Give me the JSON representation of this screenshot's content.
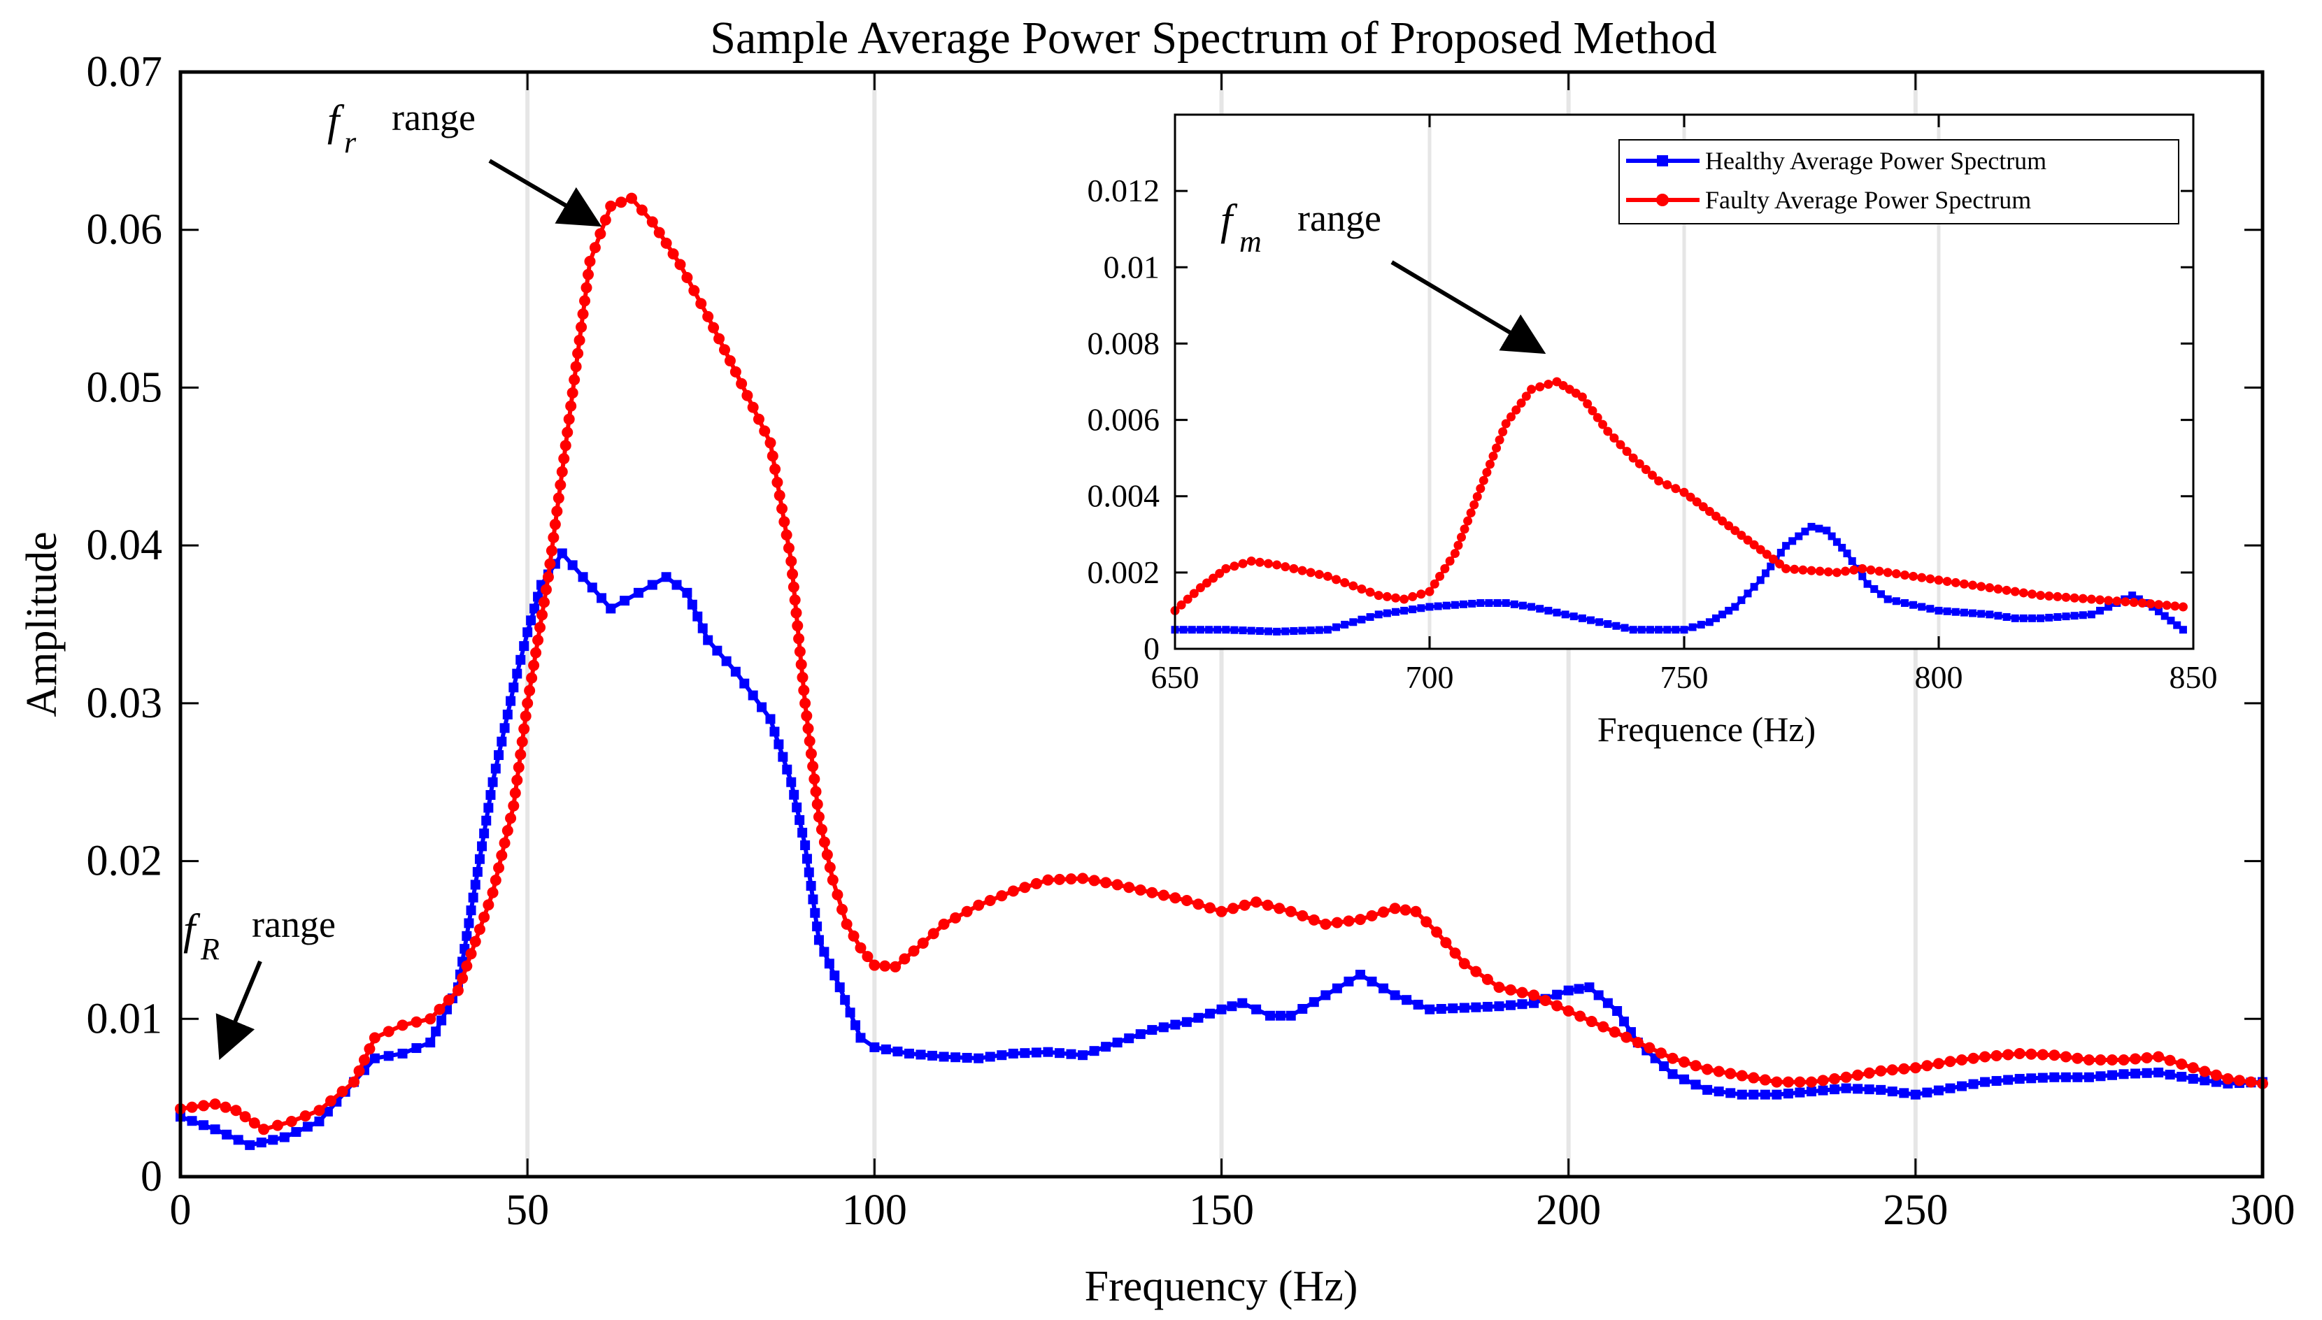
{
  "chart_data": [
    {
      "id": "main",
      "type": "line",
      "title": "Sample Average Power Spectrum of Proposed Method",
      "xlabel": "Frequency (Hz)",
      "ylabel": "Amplitude",
      "xlim": [
        0,
        300
      ],
      "ylim": [
        0,
        0.07
      ],
      "xticks": [
        0,
        50,
        100,
        150,
        200,
        250,
        300
      ],
      "xtick_labels": [
        "0",
        "50",
        "100",
        "150",
        "200",
        "250",
        "300"
      ],
      "yticks": [
        0,
        0.01,
        0.02,
        0.03,
        0.04,
        0.05,
        0.06,
        0.07
      ],
      "ytick_labels": [
        "0",
        "0.01",
        "0.02",
        "0.03",
        "0.04",
        "0.05",
        "0.06",
        "0.07"
      ],
      "grid": "vertical",
      "series": [
        {
          "name": "Healthy Average Power Spectrum",
          "color": "#0000ff",
          "marker": "square",
          "x": [
            0,
            5,
            10,
            15,
            20,
            25,
            28,
            32,
            36,
            40,
            45,
            48,
            50,
            52,
            55,
            58,
            62,
            66,
            70,
            73,
            76,
            80,
            85,
            88,
            90,
            92,
            95,
            98,
            100,
            105,
            110,
            115,
            120,
            125,
            130,
            135,
            140,
            145,
            150,
            153,
            157,
            160,
            165,
            170,
            175,
            180,
            185,
            190,
            195,
            200,
            203,
            207,
            210,
            215,
            220,
            225,
            230,
            235,
            240,
            245,
            250,
            255,
            260,
            265,
            270,
            275,
            280,
            285,
            290,
            295,
            300
          ],
          "y": [
            0.0038,
            0.003,
            0.002,
            0.0025,
            0.0035,
            0.006,
            0.0075,
            0.0078,
            0.0085,
            0.012,
            0.025,
            0.031,
            0.0345,
            0.0375,
            0.0395,
            0.038,
            0.036,
            0.037,
            0.038,
            0.037,
            0.034,
            0.032,
            0.029,
            0.025,
            0.021,
            0.015,
            0.012,
            0.0088,
            0.0082,
            0.0078,
            0.0076,
            0.0075,
            0.0078,
            0.0079,
            0.0077,
            0.0085,
            0.0093,
            0.0098,
            0.0106,
            0.011,
            0.0102,
            0.0102,
            0.0115,
            0.0128,
            0.0115,
            0.0106,
            0.0107,
            0.0108,
            0.011,
            0.0118,
            0.012,
            0.0105,
            0.0085,
            0.0065,
            0.0055,
            0.0052,
            0.0052,
            0.0054,
            0.0056,
            0.0055,
            0.0052,
            0.0056,
            0.006,
            0.0062,
            0.0063,
            0.0063,
            0.0065,
            0.0066,
            0.0062,
            0.0059,
            0.006
          ]
        },
        {
          "name": "Faulty Average Power Spectrum",
          "color": "#ff0000",
          "marker": "circle",
          "x": [
            0,
            5,
            8,
            12,
            16,
            20,
            25,
            28,
            32,
            36,
            40,
            45,
            48,
            50,
            53,
            56,
            59,
            62,
            65,
            68,
            72,
            76,
            80,
            85,
            88,
            90,
            92,
            94,
            96,
            98,
            100,
            103,
            107,
            110,
            115,
            120,
            125,
            130,
            135,
            140,
            145,
            150,
            155,
            160,
            165,
            170,
            175,
            178,
            181,
            185,
            190,
            195,
            200,
            205,
            210,
            215,
            220,
            225,
            230,
            235,
            240,
            245,
            250,
            255,
            260,
            265,
            270,
            275,
            280,
            285,
            290,
            295,
            300
          ],
          "y": [
            0.0043,
            0.0046,
            0.0042,
            0.003,
            0.0035,
            0.0042,
            0.006,
            0.0088,
            0.0096,
            0.01,
            0.0118,
            0.018,
            0.0235,
            0.03,
            0.038,
            0.048,
            0.058,
            0.0615,
            0.062,
            0.0605,
            0.0578,
            0.0545,
            0.051,
            0.0465,
            0.039,
            0.03,
            0.0228,
            0.0188,
            0.016,
            0.0145,
            0.0134,
            0.0133,
            0.0148,
            0.016,
            0.0172,
            0.0181,
            0.0188,
            0.0189,
            0.0185,
            0.018,
            0.0175,
            0.0168,
            0.0174,
            0.0168,
            0.016,
            0.0163,
            0.017,
            0.0168,
            0.0155,
            0.0135,
            0.012,
            0.0115,
            0.0105,
            0.0095,
            0.0085,
            0.0075,
            0.0068,
            0.0064,
            0.006,
            0.006,
            0.0063,
            0.0067,
            0.0069,
            0.0073,
            0.0076,
            0.0078,
            0.0077,
            0.0074,
            0.0074,
            0.0076,
            0.0069,
            0.0062,
            0.0059
          ]
        }
      ],
      "annotations": [
        {
          "symbol": "f",
          "subscript": "r",
          "text": "range"
        },
        {
          "symbol": "f",
          "subscript": "R",
          "text": "range"
        }
      ]
    },
    {
      "id": "inset",
      "type": "line",
      "title": "",
      "xlabel": "Frequence (Hz)",
      "ylabel": "",
      "xlim": [
        650,
        850
      ],
      "ylim": [
        0,
        0.014
      ],
      "xticks": [
        650,
        700,
        750,
        800,
        850
      ],
      "xtick_labels": [
        "650",
        "700",
        "750",
        "800",
        "850"
      ],
      "yticks": [
        0,
        0.002,
        0.004,
        0.006,
        0.008,
        0.01,
        0.012
      ],
      "ytick_labels": [
        "0",
        "0.002",
        "0.004",
        "0.006",
        "0.008",
        "0.01",
        "0.012"
      ],
      "grid": "vertical",
      "legend": {
        "position": "top-right",
        "entries": [
          "Healthy Average Power Spectrum",
          "Faulty Average Power Spectrum"
        ]
      },
      "series": [
        {
          "name": "Healthy Average Power Spectrum",
          "color": "#0000ff",
          "marker": "square",
          "x": [
            650,
            660,
            670,
            680,
            690,
            700,
            710,
            715,
            720,
            730,
            740,
            750,
            755,
            760,
            765,
            770,
            775,
            778,
            782,
            786,
            790,
            800,
            810,
            815,
            820,
            830,
            835,
            838,
            842,
            848
          ],
          "y": [
            0.0005,
            0.0005,
            0.00045,
            0.0005,
            0.0009,
            0.0011,
            0.0012,
            0.0012,
            0.0011,
            0.0008,
            0.0005,
            0.0005,
            0.0007,
            0.0011,
            0.0018,
            0.0027,
            0.0032,
            0.0031,
            0.0025,
            0.0017,
            0.0013,
            0.001,
            0.0009,
            0.0008,
            0.0008,
            0.0009,
            0.0012,
            0.0014,
            0.0011,
            0.0005
          ]
        },
        {
          "name": "Faulty Average Power Spectrum",
          "color": "#ff0000",
          "marker": "circle",
          "x": [
            650,
            655,
            660,
            665,
            670,
            680,
            690,
            695,
            700,
            705,
            710,
            715,
            720,
            725,
            730,
            735,
            740,
            745,
            750,
            755,
            760,
            765,
            770,
            780,
            785,
            790,
            800,
            810,
            820,
            830,
            840,
            848
          ],
          "y": [
            0.001,
            0.0016,
            0.0021,
            0.0023,
            0.0022,
            0.0019,
            0.0014,
            0.0013,
            0.0015,
            0.0025,
            0.0042,
            0.0059,
            0.0068,
            0.007,
            0.0066,
            0.0057,
            0.005,
            0.0044,
            0.0041,
            0.0036,
            0.0031,
            0.0026,
            0.0021,
            0.002,
            0.0021,
            0.002,
            0.0018,
            0.0016,
            0.0014,
            0.0013,
            0.0012,
            0.0011
          ]
        }
      ],
      "annotations": [
        {
          "symbol": "f",
          "subscript": "m",
          "text": "range"
        }
      ]
    }
  ]
}
